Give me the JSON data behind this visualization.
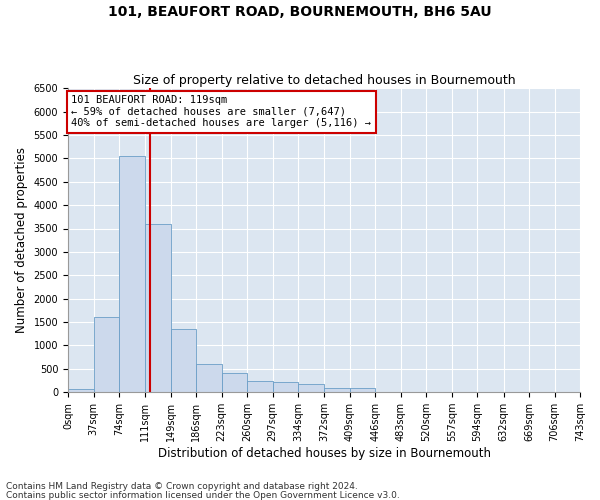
{
  "title": "101, BEAUFORT ROAD, BOURNEMOUTH, BH6 5AU",
  "subtitle": "Size of property relative to detached houses in Bournemouth",
  "xlabel": "Distribution of detached houses by size in Bournemouth",
  "ylabel": "Number of detached properties",
  "footnote1": "Contains HM Land Registry data © Crown copyright and database right 2024.",
  "footnote2": "Contains public sector information licensed under the Open Government Licence v3.0.",
  "bar_color": "#ccd9ec",
  "bar_edge_color": "#6a9ec7",
  "bg_color": "#dce6f1",
  "grid_color": "#ffffff",
  "vline_color": "#cc0000",
  "vline_x": 119,
  "annotation_text": "101 BEAUFORT ROAD: 119sqm\n← 59% of detached houses are smaller (7,647)\n40% of semi-detached houses are larger (5,116) →",
  "annotation_box_color": "#cc0000",
  "bin_edges": [
    0,
    37,
    74,
    111,
    149,
    186,
    223,
    260,
    297,
    334,
    372,
    409,
    446,
    483,
    520,
    557,
    594,
    632,
    669,
    706,
    743
  ],
  "bin_counts": [
    70,
    1600,
    5050,
    3600,
    1350,
    600,
    420,
    250,
    210,
    170,
    100,
    80,
    10,
    0,
    0,
    0,
    0,
    0,
    0,
    0
  ],
  "ylim": [
    0,
    6500
  ],
  "yticks": [
    0,
    500,
    1000,
    1500,
    2000,
    2500,
    3000,
    3500,
    4000,
    4500,
    5000,
    5500,
    6000,
    6500
  ],
  "title_fontsize": 10,
  "subtitle_fontsize": 9,
  "axis_label_fontsize": 8.5,
  "tick_fontsize": 7,
  "footnote_fontsize": 6.5,
  "annot_fontsize": 7.5
}
